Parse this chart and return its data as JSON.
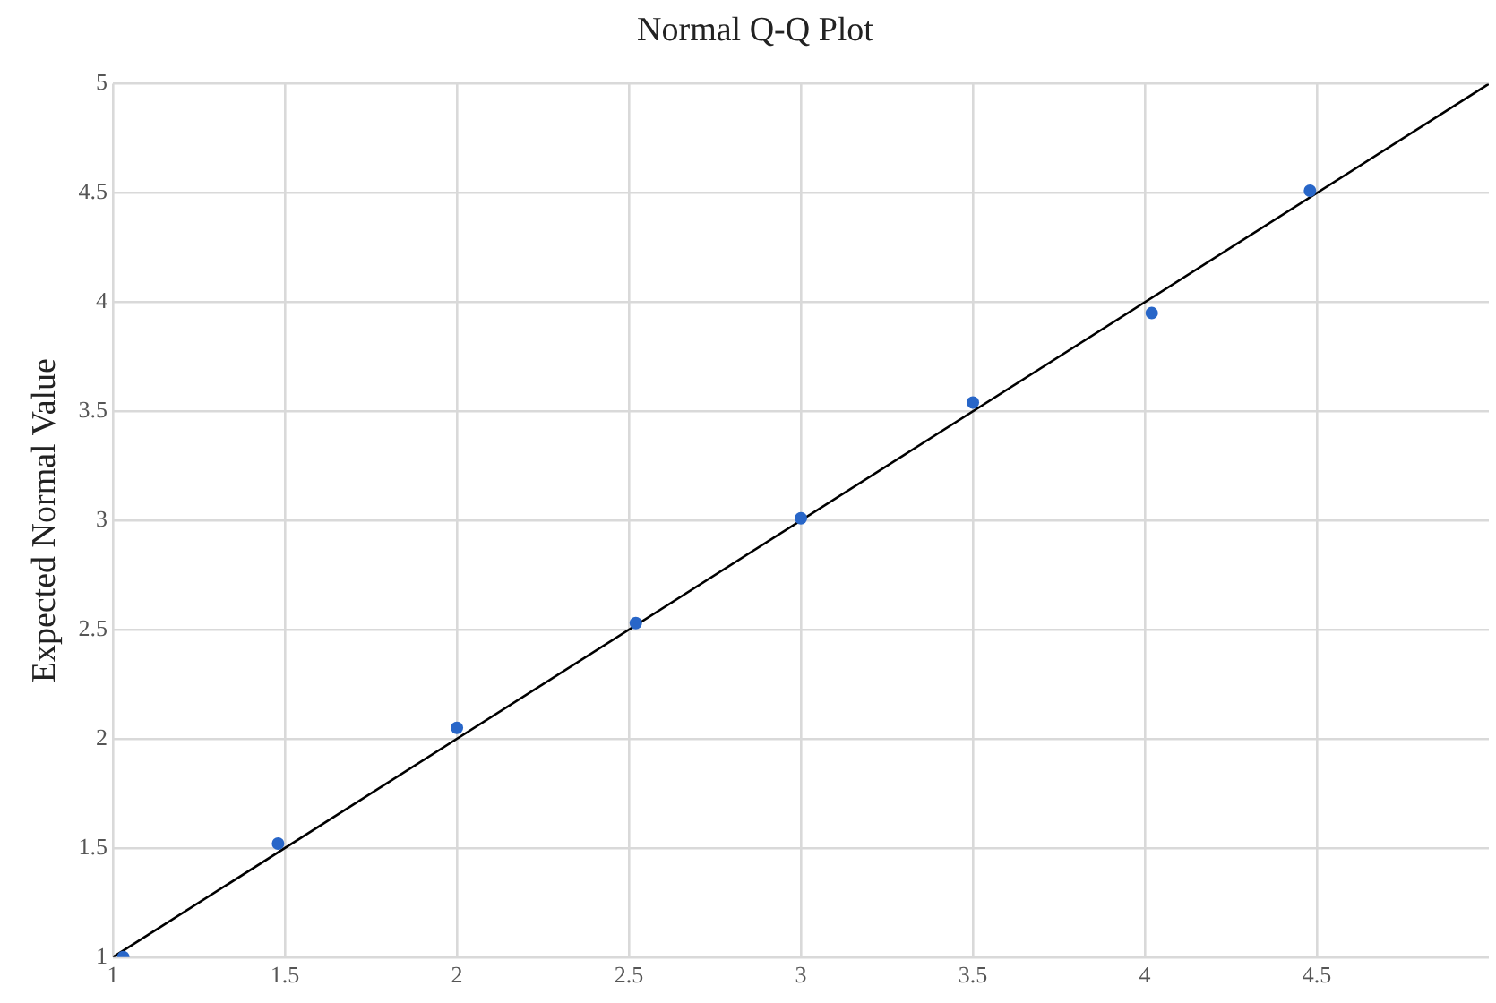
{
  "chart_data": {
    "type": "scatter",
    "title": "Normal Q-Q Plot",
    "ylabel": "Expected Normal Value",
    "xlim": [
      1,
      5
    ],
    "xticks": [
      1,
      1.5,
      2,
      2.5,
      3,
      3.5,
      4,
      4.5
    ],
    "ylim": [
      1,
      5
    ],
    "yticks": [
      1,
      1.5,
      2,
      2.5,
      3,
      3.5,
      4,
      4.5,
      5
    ],
    "grid": true,
    "legend": false,
    "series": [
      {
        "type": "scatter",
        "color": "#2866c8",
        "marker": "circle",
        "x": [
          1.03,
          1.48,
          2.0,
          2.52,
          3.0,
          3.5,
          4.02,
          4.48
        ],
        "values": [
          1.0,
          1.52,
          2.05,
          2.53,
          3.01,
          3.54,
          3.95,
          4.51
        ]
      },
      {
        "type": "line",
        "color": "#000000",
        "marker": "none",
        "line_style": "solid",
        "x": [
          1,
          5
        ],
        "values": [
          1,
          5
        ]
      }
    ]
  }
}
